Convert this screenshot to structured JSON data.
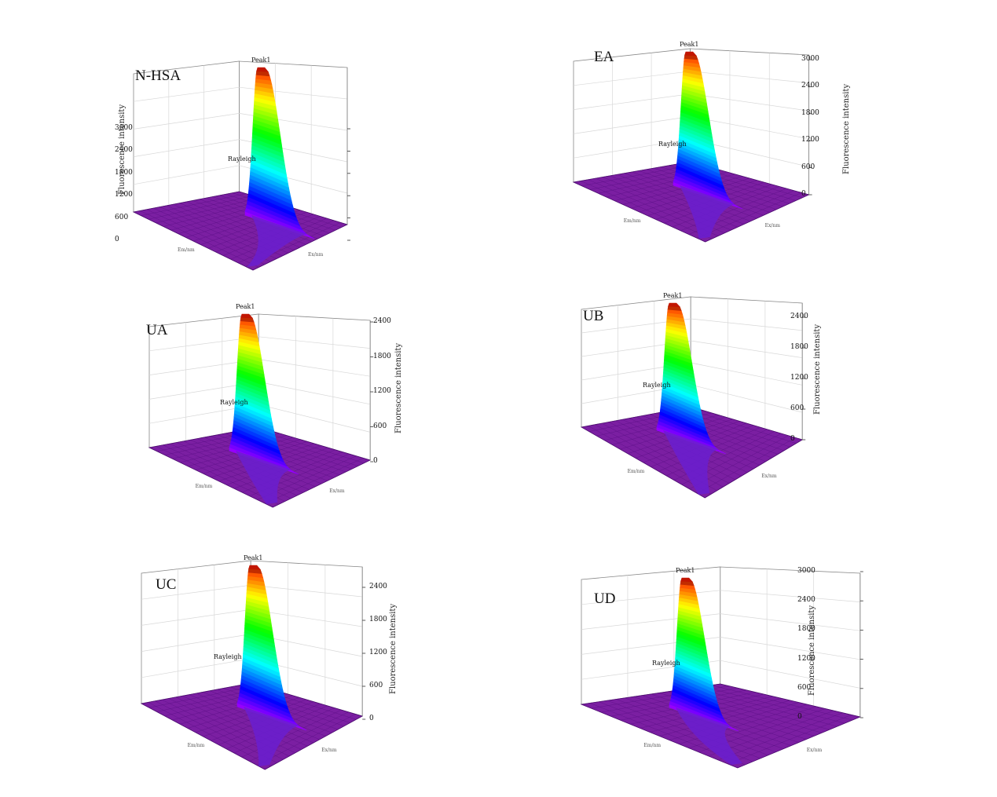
{
  "chart_data": [
    {
      "type": "surface",
      "panel_label": "N-HSA",
      "zlabel": "Fluorescence intensity",
      "z_ticks": [
        "3000",
        "2400",
        "1800",
        "1200",
        "600",
        "0"
      ],
      "z_labels_side": "left",
      "annotations": {
        "peak": "Peak1",
        "rayleigh": "Rayleigh"
      },
      "axis_labels": {
        "x": "Em/nm",
        "y": "Ex/nm"
      },
      "peak_intensity": 3000
    },
    {
      "type": "surface",
      "panel_label": "EA",
      "zlabel": "Fluorescence intensity",
      "z_ticks": [
        "3000",
        "2400",
        "1800",
        "1200",
        "600",
        "0"
      ],
      "z_labels_side": "right",
      "annotations": {
        "peak": "Peak1",
        "rayleigh": "Rayleigh"
      },
      "axis_labels": {
        "x": "Em/nm",
        "y": "Ex/nm"
      },
      "peak_intensity": 3200
    },
    {
      "type": "surface",
      "panel_label": "UA",
      "zlabel": "Fluorescence intensity",
      "z_ticks": [
        "2400",
        "1800",
        "1200",
        "600",
        "0"
      ],
      "z_labels_side": "right",
      "annotations": {
        "peak": "Peak1",
        "rayleigh": "Rayleigh"
      },
      "axis_labels": {
        "x": "Em/nm",
        "y": "Ex/nm"
      },
      "peak_intensity": 2600
    },
    {
      "type": "surface",
      "panel_label": "UB",
      "zlabel": "Fluorescence intensity",
      "z_ticks": [
        "2400",
        "1800",
        "1200",
        "600",
        "0"
      ],
      "z_labels_side": "right",
      "annotations": {
        "peak": "Peak1",
        "rayleigh": "Rayleigh"
      },
      "axis_labels": {
        "x": "Em/nm",
        "y": "Ex/nm"
      },
      "peak_intensity": 2600
    },
    {
      "type": "surface",
      "panel_label": "UC",
      "zlabel": "Fluorescence intensity",
      "z_ticks": [
        "2400",
        "1800",
        "1200",
        "600",
        "0"
      ],
      "z_labels_side": "right",
      "annotations": {
        "peak": "Peak1",
        "rayleigh": "Rayleigh"
      },
      "axis_labels": {
        "x": "Em/nm",
        "y": "Ex/nm"
      },
      "peak_intensity": 2600
    },
    {
      "type": "surface",
      "panel_label": "UD",
      "zlabel": "Fluorescence intensity",
      "z_ticks": [
        "3000",
        "2400",
        "1800",
        "1200",
        "600",
        "0"
      ],
      "z_labels_side": "right",
      "annotations": {
        "peak": "Peak1",
        "rayleigh": "Rayleigh"
      },
      "axis_labels": {
        "x": "Em/nm",
        "y": "Ex/nm"
      },
      "peak_intensity": 3000
    }
  ],
  "colors": {
    "floor": "#7b1fa2",
    "floor_grid": "#5b0f86",
    "box": "#888888",
    "grid": "#d8d8d8"
  }
}
